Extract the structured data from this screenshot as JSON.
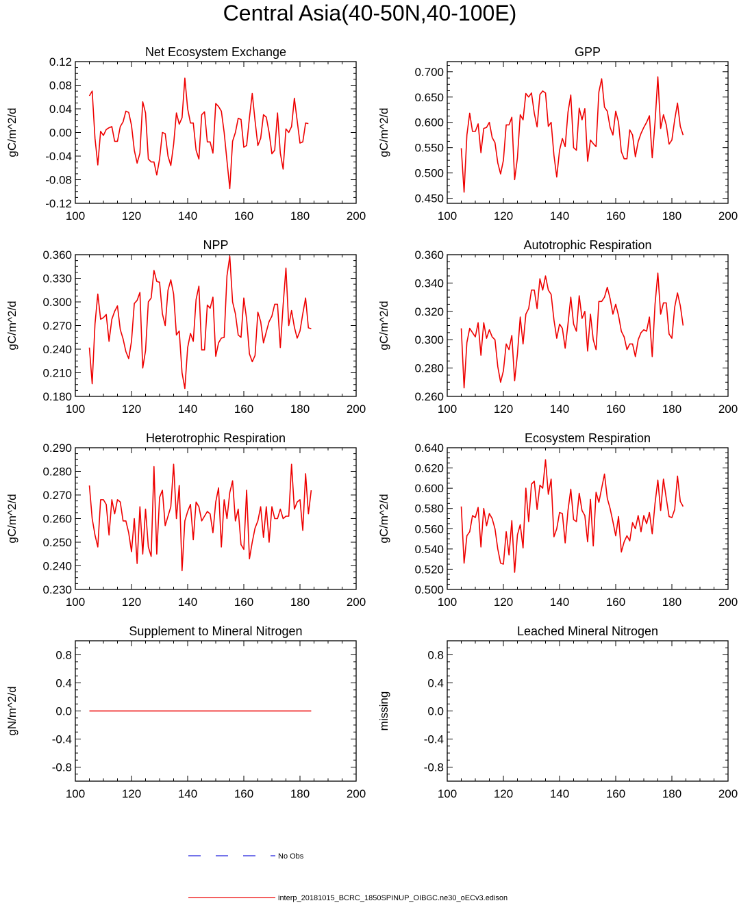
{
  "figure": {
    "title": "Central Asia(40-50N,40-100E)"
  },
  "legend": {
    "entries": [
      {
        "label": "No Obs",
        "color": "#2222dd",
        "style": "dashed"
      },
      {
        "label": "interp_20181015_BCRC_1850SPINUP_OIBGC.ne30_oECv3.edison",
        "color": "#ee0000",
        "style": "solid"
      }
    ]
  },
  "chart_data": [
    {
      "type": "line",
      "title": "Net Ecosystem Exchange",
      "ylabel": "gC/m^2/d",
      "xlim": [
        100,
        200
      ],
      "ylim": [
        -0.12,
        0.12
      ],
      "xticks": [
        100,
        120,
        140,
        160,
        180,
        200
      ],
      "yticks": [
        -0.12,
        -0.08,
        -0.04,
        0.0,
        0.04,
        0.08,
        0.12
      ],
      "ytick_labels": [
        "-0.12",
        "-0.08",
        "-0.04",
        "0.00",
        "0.04",
        "0.08",
        "0.12"
      ],
      "series": [
        {
          "name": "interp_20181015_BCRC_1850SPINUP_OIBGC.ne30_oECv3.edison",
          "color": "#ee0000",
          "x_start": 105,
          "values": [
            0.062,
            0.07,
            -0.01,
            -0.055,
            0.002,
            -0.005,
            0.005,
            0.008,
            0.01,
            -0.015,
            -0.015,
            0.01,
            0.018,
            0.036,
            0.034,
            0.012,
            -0.03,
            -0.052,
            -0.035,
            0.052,
            0.033,
            -0.045,
            -0.05,
            -0.05,
            -0.072,
            -0.045,
            0.0,
            -0.002,
            -0.04,
            -0.056,
            -0.02,
            0.033,
            0.014,
            0.025,
            0.092,
            0.04,
            0.016,
            0.016,
            -0.03,
            -0.045,
            0.03,
            0.035,
            -0.016,
            -0.016,
            -0.035,
            0.049,
            0.044,
            0.036,
            0.0,
            -0.048,
            -0.095,
            -0.015,
            0.0,
            0.024,
            0.022,
            -0.025,
            -0.022,
            0.025,
            0.066,
            0.02,
            -0.022,
            -0.01,
            0.03,
            0.026,
            0.0,
            -0.036,
            -0.03,
            0.033,
            -0.035,
            -0.062,
            0.006,
            0.0,
            0.01,
            0.058,
            0.02,
            -0.018,
            -0.016,
            0.016,
            0.015
          ]
        }
      ]
    },
    {
      "type": "line",
      "title": "GPP",
      "ylabel": "gC/m^2/d",
      "xlim": [
        100,
        200
      ],
      "ylim": [
        0.44,
        0.72
      ],
      "xticks": [
        100,
        120,
        140,
        160,
        180,
        200
      ],
      "yticks": [
        0.45,
        0.5,
        0.55,
        0.6,
        0.65,
        0.7
      ],
      "ytick_labels": [
        "0.450",
        "0.500",
        "0.550",
        "0.600",
        "0.650",
        "0.700"
      ],
      "series": [
        {
          "name": "interp_20181015_BCRC_1850SPINUP_OIBGC.ne30_oECv3.edison",
          "color": "#ee0000",
          "x_start": 105,
          "values": [
            0.549,
            0.462,
            0.575,
            0.618,
            0.582,
            0.582,
            0.597,
            0.54,
            0.588,
            0.59,
            0.6,
            0.57,
            0.56,
            0.52,
            0.498,
            0.525,
            0.595,
            0.595,
            0.61,
            0.487,
            0.53,
            0.615,
            0.605,
            0.657,
            0.65,
            0.658,
            0.618,
            0.591,
            0.655,
            0.662,
            0.658,
            0.592,
            0.6,
            0.535,
            0.492,
            0.545,
            0.568,
            0.552,
            0.62,
            0.654,
            0.55,
            0.545,
            0.628,
            0.605,
            0.627,
            0.523,
            0.565,
            0.558,
            0.552,
            0.66,
            0.686,
            0.63,
            0.622,
            0.59,
            0.575,
            0.622,
            0.6,
            0.542,
            0.528,
            0.528,
            0.585,
            0.575,
            0.532,
            0.562,
            0.578,
            0.59,
            0.6,
            0.613,
            0.53,
            0.6,
            0.69,
            0.588,
            0.615,
            0.595,
            0.557,
            0.565,
            0.605,
            0.638,
            0.592,
            0.575
          ]
        }
      ]
    },
    {
      "type": "line",
      "title": "NPP",
      "ylabel": "gC/m^2/d",
      "xlim": [
        100,
        200
      ],
      "ylim": [
        0.18,
        0.36
      ],
      "xticks": [
        100,
        120,
        140,
        160,
        180,
        200
      ],
      "yticks": [
        0.18,
        0.21,
        0.24,
        0.27,
        0.3,
        0.33,
        0.36
      ],
      "ytick_labels": [
        "0.180",
        "0.210",
        "0.240",
        "0.270",
        "0.300",
        "0.330",
        "0.360"
      ],
      "series": [
        {
          "name": "interp_20181015_BCRC_1850SPINUP_OIBGC.ne30_oECv3.edison",
          "color": "#ee0000",
          "x_start": 105,
          "values": [
            0.242,
            0.196,
            0.272,
            0.31,
            0.278,
            0.28,
            0.284,
            0.25,
            0.278,
            0.288,
            0.295,
            0.265,
            0.253,
            0.237,
            0.228,
            0.25,
            0.298,
            0.302,
            0.312,
            0.216,
            0.238,
            0.3,
            0.305,
            0.34,
            0.326,
            0.325,
            0.285,
            0.27,
            0.315,
            0.328,
            0.31,
            0.258,
            0.263,
            0.21,
            0.19,
            0.242,
            0.26,
            0.25,
            0.303,
            0.32,
            0.239,
            0.239,
            0.296,
            0.292,
            0.306,
            0.231,
            0.248,
            0.254,
            0.255,
            0.333,
            0.358,
            0.3,
            0.285,
            0.258,
            0.255,
            0.305,
            0.278,
            0.234,
            0.224,
            0.232,
            0.287,
            0.275,
            0.248,
            0.262,
            0.275,
            0.282,
            0.297,
            0.297,
            0.242,
            0.296,
            0.343,
            0.27,
            0.289,
            0.268,
            0.254,
            0.263,
            0.285,
            0.305,
            0.267,
            0.266
          ]
        }
      ]
    },
    {
      "type": "line",
      "title": "Autotrophic Respiration",
      "ylabel": "gC/m^2/d",
      "xlim": [
        100,
        200
      ],
      "ylim": [
        0.26,
        0.36
      ],
      "xticks": [
        100,
        120,
        140,
        160,
        180,
        200
      ],
      "yticks": [
        0.26,
        0.28,
        0.3,
        0.32,
        0.34,
        0.36
      ],
      "ytick_labels": [
        "0.260",
        "0.280",
        "0.300",
        "0.320",
        "0.340",
        "0.360"
      ],
      "series": [
        {
          "name": "interp_20181015_BCRC_1850SPINUP_OIBGC.ne30_oECv3.edison",
          "color": "#ee0000",
          "x_start": 105,
          "values": [
            0.308,
            0.266,
            0.298,
            0.308,
            0.305,
            0.302,
            0.312,
            0.289,
            0.312,
            0.301,
            0.307,
            0.302,
            0.3,
            0.281,
            0.27,
            0.278,
            0.297,
            0.293,
            0.303,
            0.271,
            0.29,
            0.316,
            0.297,
            0.318,
            0.322,
            0.335,
            0.335,
            0.322,
            0.343,
            0.335,
            0.345,
            0.335,
            0.332,
            0.314,
            0.301,
            0.311,
            0.308,
            0.294,
            0.311,
            0.33,
            0.311,
            0.306,
            0.331,
            0.315,
            0.32,
            0.292,
            0.318,
            0.3,
            0.293,
            0.327,
            0.327,
            0.33,
            0.337,
            0.329,
            0.318,
            0.325,
            0.317,
            0.306,
            0.302,
            0.293,
            0.297,
            0.297,
            0.288,
            0.3,
            0.305,
            0.307,
            0.306,
            0.316,
            0.288,
            0.325,
            0.347,
            0.318,
            0.326,
            0.326,
            0.304,
            0.301,
            0.323,
            0.333,
            0.324,
            0.31
          ]
        }
      ]
    },
    {
      "type": "line",
      "title": "Heterotrophic Respiration",
      "ylabel": "gC/m^2/d",
      "xlim": [
        100,
        200
      ],
      "ylim": [
        0.23,
        0.29
      ],
      "xticks": [
        100,
        120,
        140,
        160,
        180,
        200
      ],
      "yticks": [
        0.23,
        0.24,
        0.25,
        0.26,
        0.27,
        0.28,
        0.29
      ],
      "ytick_labels": [
        "0.230",
        "0.240",
        "0.250",
        "0.260",
        "0.270",
        "0.280",
        "0.290"
      ],
      "series": [
        {
          "name": "interp_20181015_BCRC_1850SPINUP_OIBGC.ne30_oECv3.edison",
          "color": "#ee0000",
          "x_start": 105,
          "values": [
            0.274,
            0.26,
            0.253,
            0.248,
            0.268,
            0.268,
            0.266,
            0.253,
            0.268,
            0.262,
            0.268,
            0.267,
            0.259,
            0.259,
            0.254,
            0.246,
            0.26,
            0.241,
            0.265,
            0.245,
            0.264,
            0.248,
            0.244,
            0.282,
            0.245,
            0.269,
            0.272,
            0.257,
            0.261,
            0.265,
            0.283,
            0.26,
            0.274,
            0.238,
            0.259,
            0.263,
            0.266,
            0.251,
            0.267,
            0.265,
            0.259,
            0.261,
            0.263,
            0.262,
            0.254,
            0.267,
            0.273,
            0.248,
            0.268,
            0.26,
            0.271,
            0.276,
            0.259,
            0.264,
            0.249,
            0.247,
            0.272,
            0.243,
            0.25,
            0.256,
            0.259,
            0.265,
            0.252,
            0.265,
            0.25,
            0.265,
            0.26,
            0.26,
            0.264,
            0.26,
            0.261,
            0.261,
            0.283,
            0.264,
            0.267,
            0.268,
            0.255,
            0.279,
            0.262,
            0.272
          ]
        }
      ]
    },
    {
      "type": "line",
      "title": "Ecosystem Respiration",
      "ylabel": "gC/m^2/d",
      "xlim": [
        100,
        200
      ],
      "ylim": [
        0.5,
        0.64
      ],
      "xticks": [
        100,
        120,
        140,
        160,
        180,
        200
      ],
      "yticks": [
        0.5,
        0.52,
        0.54,
        0.56,
        0.58,
        0.6,
        0.62,
        0.64
      ],
      "ytick_labels": [
        "0.500",
        "0.520",
        "0.540",
        "0.560",
        "0.580",
        "0.600",
        "0.620",
        "0.640"
      ],
      "series": [
        {
          "name": "interp_20181015_BCRC_1850SPINUP_OIBGC.ne30_oECv3.edison",
          "color": "#ee0000",
          "x_start": 105,
          "values": [
            0.582,
            0.526,
            0.553,
            0.557,
            0.573,
            0.571,
            0.581,
            0.542,
            0.58,
            0.563,
            0.575,
            0.57,
            0.56,
            0.54,
            0.526,
            0.525,
            0.557,
            0.534,
            0.568,
            0.517,
            0.554,
            0.564,
            0.541,
            0.6,
            0.567,
            0.604,
            0.607,
            0.579,
            0.603,
            0.6,
            0.628,
            0.594,
            0.609,
            0.552,
            0.56,
            0.576,
            0.575,
            0.546,
            0.578,
            0.599,
            0.569,
            0.567,
            0.595,
            0.578,
            0.573,
            0.547,
            0.589,
            0.543,
            0.596,
            0.586,
            0.6,
            0.614,
            0.59,
            0.58,
            0.567,
            0.553,
            0.572,
            0.537,
            0.547,
            0.553,
            0.548,
            0.566,
            0.56,
            0.573,
            0.557,
            0.573,
            0.565,
            0.576,
            0.555,
            0.585,
            0.608,
            0.578,
            0.609,
            0.59,
            0.572,
            0.571,
            0.579,
            0.612,
            0.587,
            0.582
          ]
        }
      ]
    },
    {
      "type": "line",
      "title": "Supplement to Mineral Nitrogen",
      "ylabel": "gN/m^2/d",
      "xlim": [
        100,
        200
      ],
      "ylim": [
        -1.0,
        1.0
      ],
      "xticks": [
        100,
        120,
        140,
        160,
        180,
        200
      ],
      "yticks": [
        -0.8,
        -0.4,
        0.0,
        0.4,
        0.8
      ],
      "ytick_labels": [
        "-0.8",
        "-0.4",
        "0.0",
        "0.4",
        "0.8"
      ],
      "series": [
        {
          "name": "interp_20181015_BCRC_1850SPINUP_OIBGC.ne30_oECv3.edison",
          "color": "#ee0000",
          "x_start": 105,
          "values": [
            0,
            0,
            0,
            0,
            0,
            0,
            0,
            0,
            0,
            0,
            0,
            0,
            0,
            0,
            0,
            0,
            0,
            0,
            0,
            0,
            0,
            0,
            0,
            0,
            0,
            0,
            0,
            0,
            0,
            0,
            0,
            0,
            0,
            0,
            0,
            0,
            0,
            0,
            0,
            0,
            0,
            0,
            0,
            0,
            0,
            0,
            0,
            0,
            0,
            0,
            0,
            0,
            0,
            0,
            0,
            0,
            0,
            0,
            0,
            0,
            0,
            0,
            0,
            0,
            0,
            0,
            0,
            0,
            0,
            0,
            0,
            0,
            0,
            0,
            0,
            0,
            0,
            0,
            0,
            0
          ]
        }
      ]
    },
    {
      "type": "line",
      "title": "Leached Mineral Nitrogen",
      "ylabel": "missing",
      "xlim": [
        100,
        200
      ],
      "ylim": [
        -1.0,
        1.0
      ],
      "xticks": [
        100,
        120,
        140,
        160,
        180,
        200
      ],
      "yticks": [
        -0.8,
        -0.4,
        0.0,
        0.4,
        0.8
      ],
      "ytick_labels": [
        "-0.8",
        "-0.4",
        "0.0",
        "0.4",
        "0.8"
      ],
      "series": []
    }
  ]
}
